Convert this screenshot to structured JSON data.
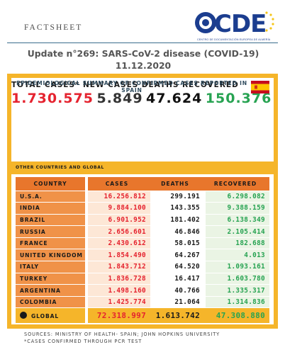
{
  "header": {
    "label": "FACTSHEET",
    "logo_text": "CDE",
    "logo_subtitle": "CENTRO DE DOCUMENTACIÓN EUROPEA DE ALMERÍA",
    "title": "Update n°269: SARS-CoV-2 disease (COVID-19) 11.12.2020"
  },
  "summary": {
    "heading": "EPIDEMIOLOGICAL SUMMARY OF CONFIRMED CASES REPORTED IN SPAIN",
    "flag_icon": "spain-flag-icon",
    "total_cases_label": "TOTAL CASES*",
    "total_cases": "1.730.575",
    "new_cases_label": "NEW CASES",
    "new_cases": "5.849",
    "deaths_label": "DEATHS",
    "deaths": "47.624",
    "recovered_label": "RECOVERED",
    "recovered": "150.376"
  },
  "others": {
    "heading": "OTHER COUNTRIES AND GLOBAL",
    "columns": [
      "COUNTRY",
      "CASES",
      "DEATHS",
      "RECOVERED"
    ],
    "rows": [
      {
        "country": "U.S.A.",
        "cases": "16.256.812",
        "deaths": "299.191",
        "recovered": "6.298.082"
      },
      {
        "country": "INDIA",
        "cases": "9.884.100",
        "deaths": "143.355",
        "recovered": "9.388.159"
      },
      {
        "country": "BRAZIL",
        "cases": "6.901.952",
        "deaths": "181.402",
        "recovered": "6.138.349"
      },
      {
        "country": "RUSSIA",
        "cases": "2.656.601",
        "deaths": "46.846",
        "recovered": "2.105.414"
      },
      {
        "country": "FRANCE",
        "cases": "2.430.612",
        "deaths": "58.015",
        "recovered": "182.688"
      },
      {
        "country": "UNITED KINGDOM",
        "cases": "1.854.490",
        "deaths": "64.267",
        "recovered": "4.013"
      },
      {
        "country": "ITALY",
        "cases": "1.843.712",
        "deaths": "64.520",
        "recovered": "1.093.161"
      },
      {
        "country": "TURKEY",
        "cases": "1.836.728",
        "deaths": "16.417",
        "recovered": "1.603.780"
      },
      {
        "country": "ARGENTINA",
        "cases": "1.498.160",
        "deaths": "40.766",
        "recovered": "1.335.317"
      },
      {
        "country": "COLOMBIA",
        "cases": "1.425.774",
        "deaths": "21.064",
        "recovered": "1.314.836"
      }
    ],
    "global": {
      "country": "GLOBAL",
      "cases": "72.318.997",
      "deaths": "1.613.742",
      "recovered": "47.308.880",
      "icon": "globe-icon"
    }
  },
  "footer": {
    "sources": "SOURCES: MINISTRY OF HEALTH- SPAIN; JOHN HOPKINS UNIVERSITY",
    "note": "*CASES CONFIRMED THROUGH PCR TEST"
  },
  "colors": {
    "accent": "#f5b52a",
    "header_orange": "#e8762c",
    "cases_red": "#e5232f",
    "recovered_green": "#27a352",
    "logo_blue": "#1b3d8f"
  }
}
